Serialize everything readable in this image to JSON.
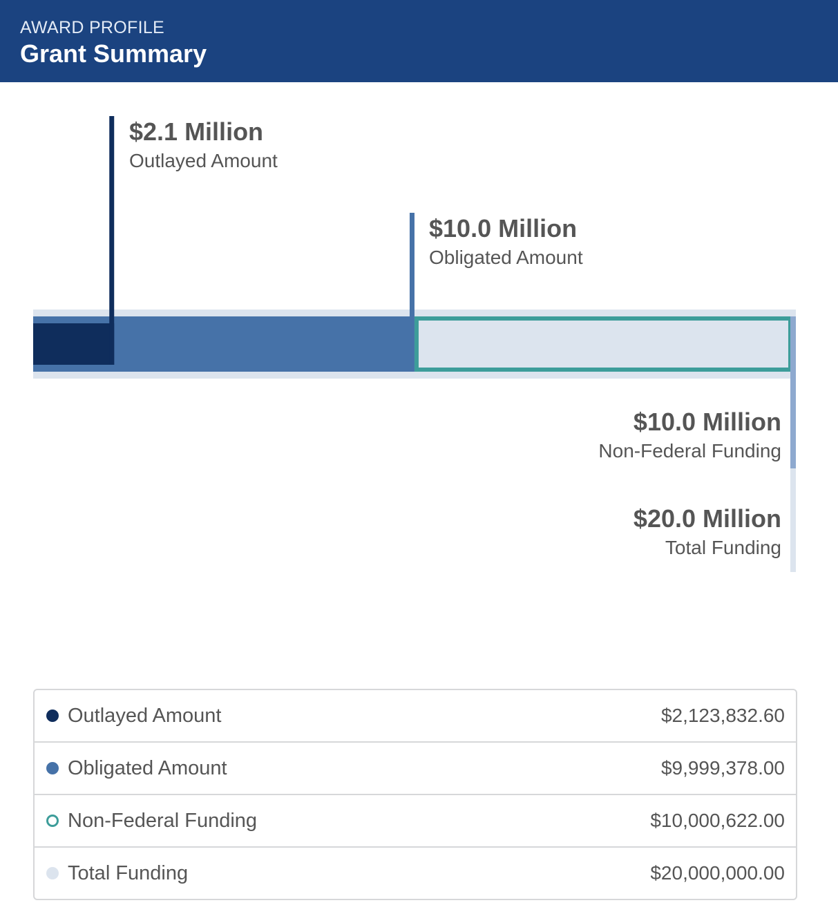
{
  "header": {
    "eyebrow": "AWARD PROFILE",
    "title": "Grant Summary"
  },
  "colors": {
    "header_bg": "#1b4380",
    "outlayed": "#0f2d5c",
    "obligated": "#4672a8",
    "non_federal": "#3d9d9a",
    "total": "#dce4ee",
    "non_federal_marker": "#8ea9cf"
  },
  "chart_data": {
    "type": "bar",
    "orientation": "horizontal-stacked",
    "xlim": [
      0,
      20000000
    ],
    "series": [
      {
        "key": "outlayed",
        "name": "Outlayed Amount",
        "value": 2123832.6,
        "display": "$2.1 Million"
      },
      {
        "key": "obligated",
        "name": "Obligated Amount",
        "value": 9999378.0,
        "display": "$10.0 Million"
      },
      {
        "key": "non_federal",
        "name": "Non-Federal Funding",
        "value": 10000622.0,
        "display": "$10.0 Million"
      },
      {
        "key": "total",
        "name": "Total Funding",
        "value": 20000000.0,
        "display": "$20.0 Million"
      }
    ]
  },
  "legend": [
    {
      "label": "Outlayed Amount",
      "value": "$2,123,832.60",
      "color": "#0f2d5c",
      "style": "filled"
    },
    {
      "label": "Obligated Amount",
      "value": "$9,999,378.00",
      "color": "#4672a8",
      "style": "filled"
    },
    {
      "label": "Non-Federal Funding",
      "value": "$10,000,622.00",
      "color": "#3d9d9a",
      "style": "ring"
    },
    {
      "label": "Total Funding",
      "value": "$20,000,000.00",
      "color": "#dce4ee",
      "style": "filled"
    }
  ]
}
